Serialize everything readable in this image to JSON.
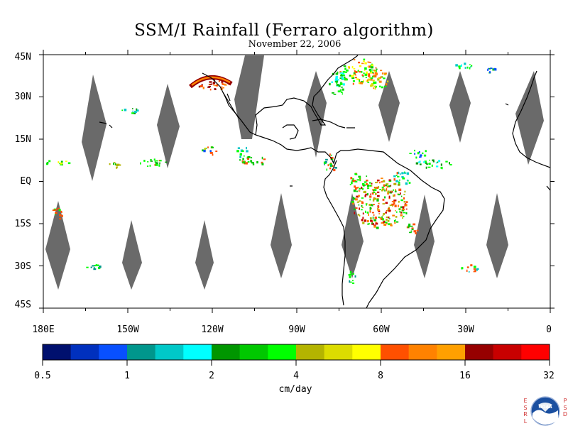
{
  "title": "SSM/I Rainfall (Ferraro algorithm)",
  "subtitle": "November 22, 2006",
  "map": {
    "extent_lon": [
      -180,
      0
    ],
    "extent_lat": [
      -45,
      45
    ],
    "lat_labels": [
      "45N",
      "30N",
      "15N",
      "EQ",
      "15S",
      "30S",
      "45S"
    ],
    "lon_labels": [
      "180E",
      "150W",
      "120W",
      "90W",
      "60W",
      "30W",
      "0"
    ],
    "swath_gap_color": "#6a6a6a",
    "coastline_color": "#000000"
  },
  "colorbar": {
    "tick_labels": [
      "0.5",
      "1",
      "2",
      "4",
      "8",
      "16",
      "32"
    ],
    "units": "cm/day",
    "colors": [
      "#00106e",
      "#0030be",
      "#0850ff",
      "#00968c",
      "#00c8c8",
      "#00ffff",
      "#009600",
      "#00c800",
      "#00ff00",
      "#b4b400",
      "#dcdc00",
      "#ffff00",
      "#ff5000",
      "#ff8200",
      "#ffa000",
      "#960000",
      "#c80000",
      "#ff0000"
    ]
  },
  "logo": {
    "left_text": "ESRL",
    "right_text": "PSD",
    "center_text": "NOAA"
  }
}
